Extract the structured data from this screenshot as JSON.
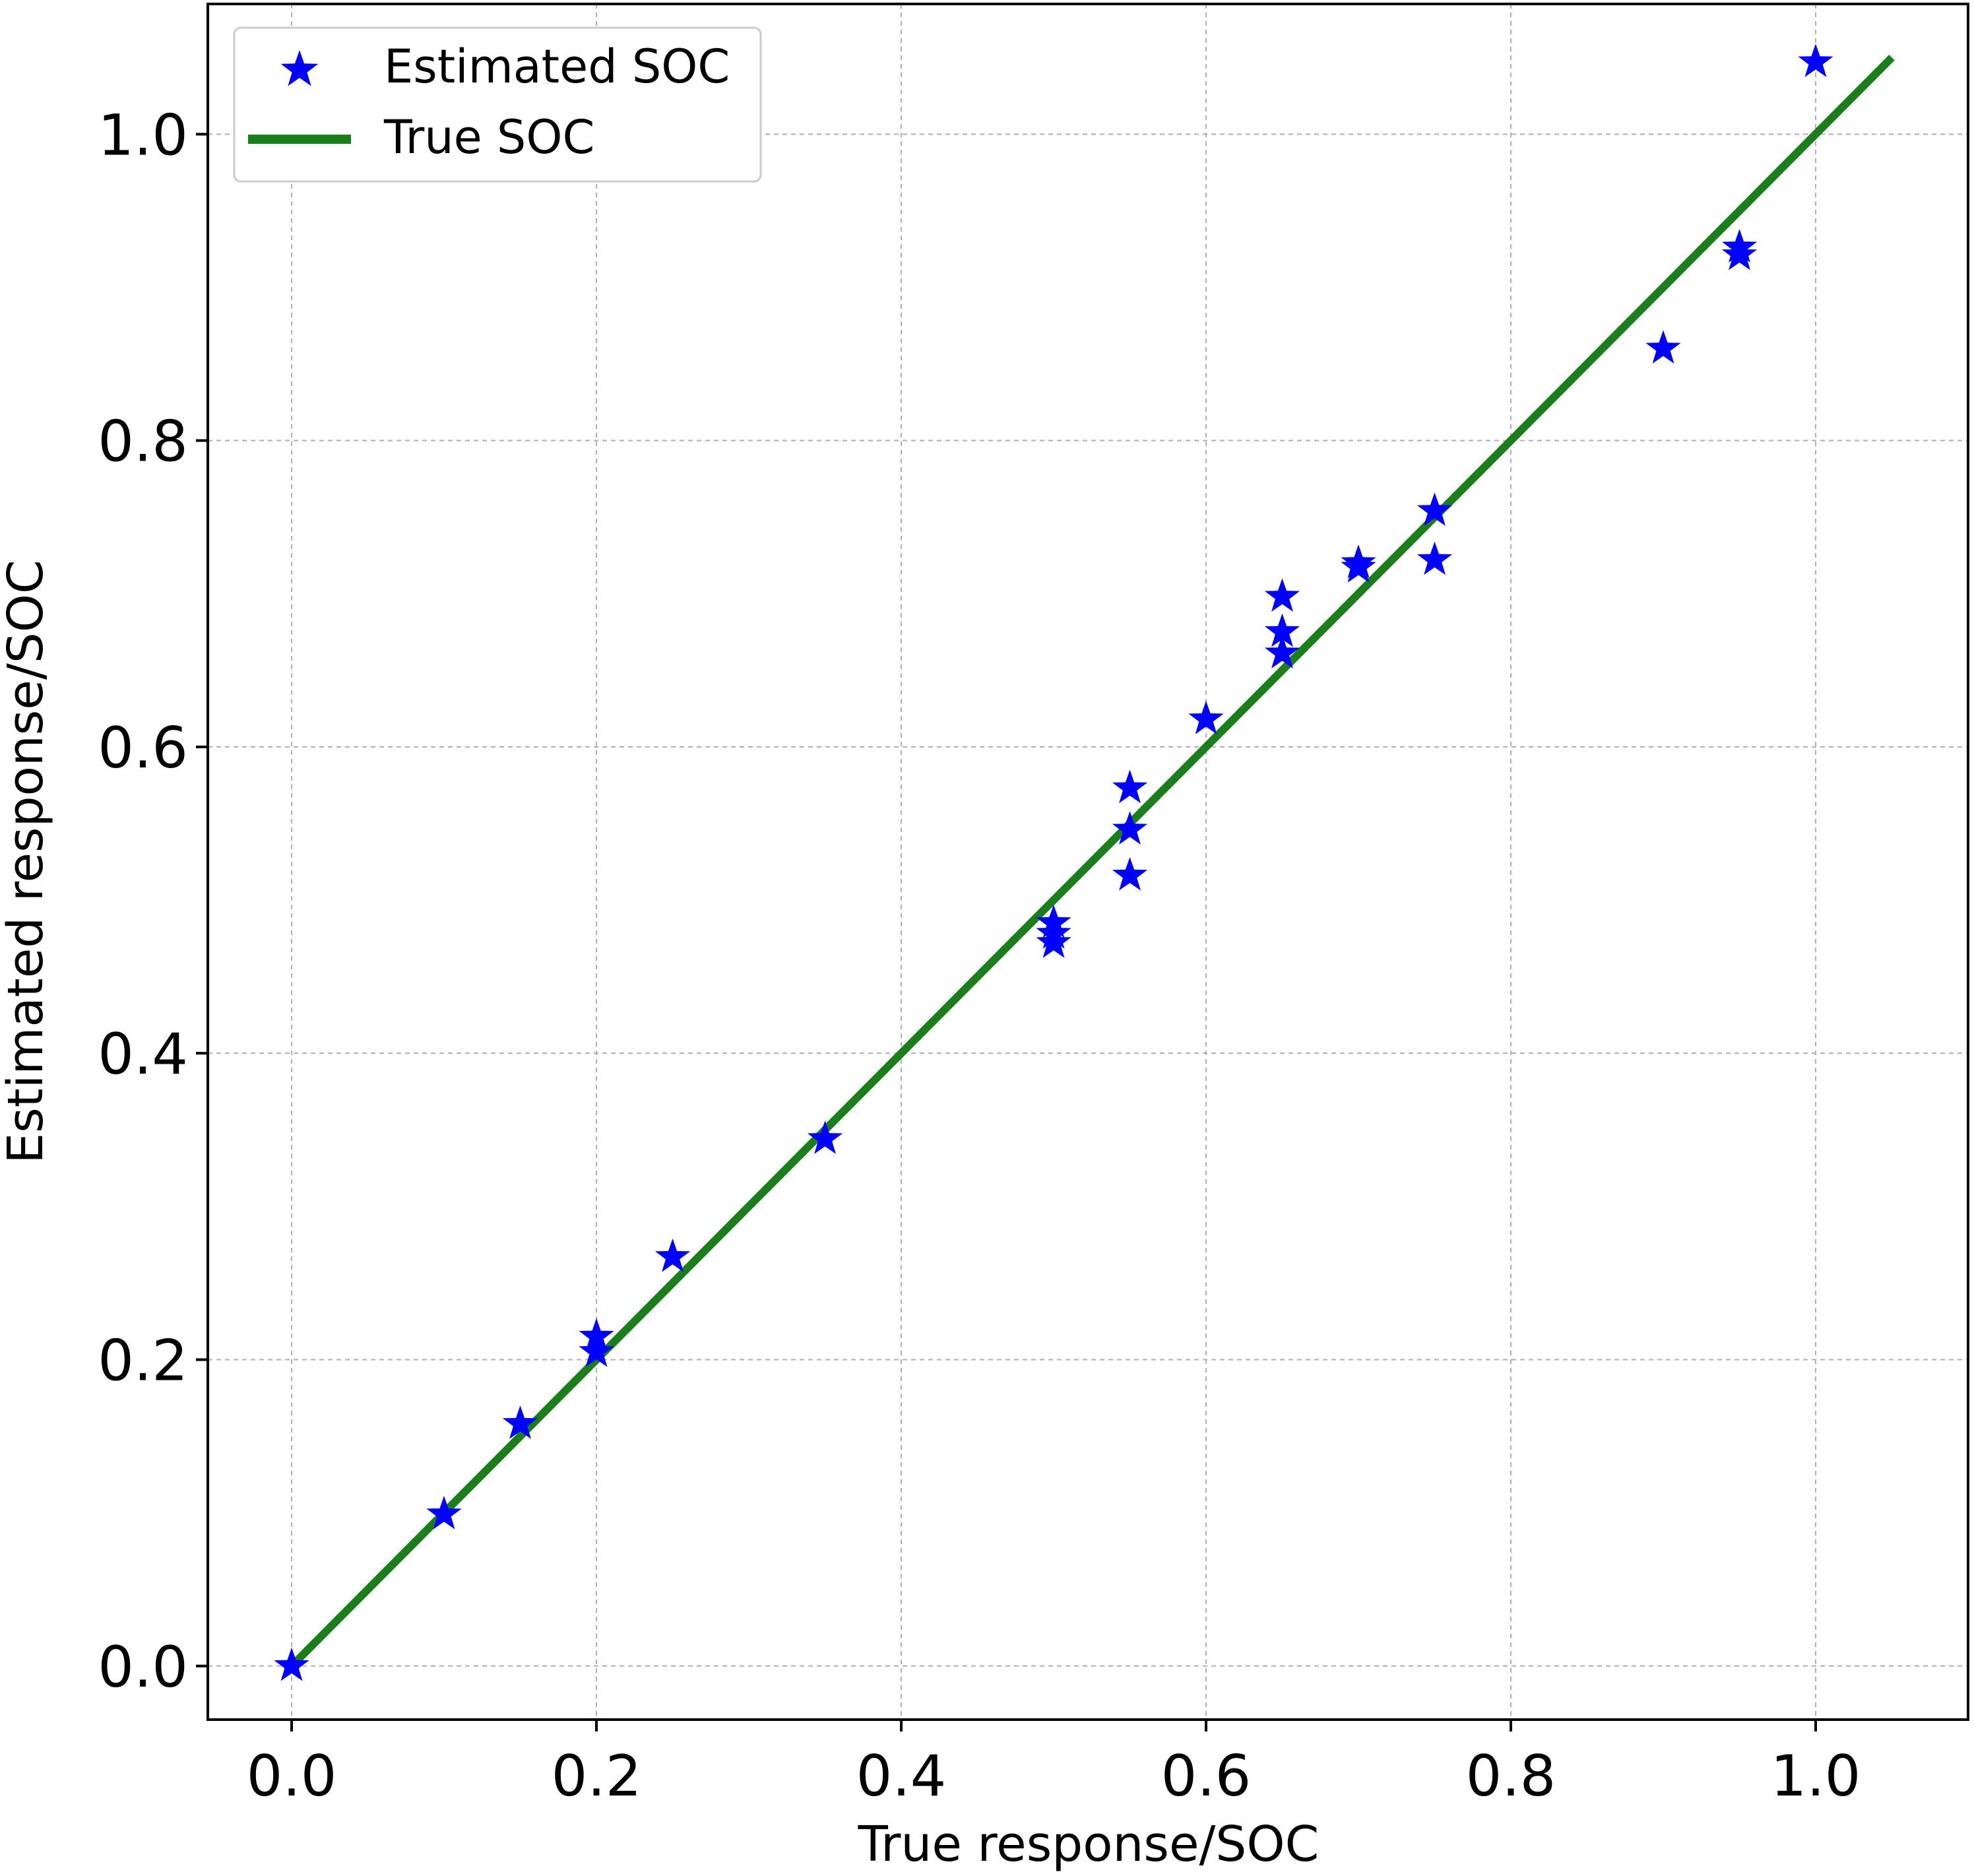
{
  "chart_data": {
    "type": "scatter",
    "xlabel": "True response/SOC",
    "ylabel": "Estimated response/SOC",
    "xlim": [
      -0.055,
      1.1
    ],
    "ylim": [
      -0.035,
      1.085
    ],
    "xticks": [
      "0.0",
      "0.2",
      "0.4",
      "0.6",
      "0.8",
      "1.0"
    ],
    "yticks": [
      "0.0",
      "0.2",
      "0.4",
      "0.6",
      "0.8",
      "1.0"
    ],
    "grid": true,
    "legend_position": "upper left",
    "series": [
      {
        "name": "Estimated SOC",
        "kind": "scatter",
        "marker": "star",
        "color": "#0000ff",
        "points": [
          {
            "x": 0.0,
            "y": 0.0
          },
          {
            "x": 0.1,
            "y": 0.099
          },
          {
            "x": 0.15,
            "y": 0.158
          },
          {
            "x": 0.2,
            "y": 0.205
          },
          {
            "x": 0.2,
            "y": 0.215
          },
          {
            "x": 0.25,
            "y": 0.267
          },
          {
            "x": 0.35,
            "y": 0.344
          },
          {
            "x": 0.5,
            "y": 0.472
          },
          {
            "x": 0.5,
            "y": 0.478
          },
          {
            "x": 0.5,
            "y": 0.485
          },
          {
            "x": 0.55,
            "y": 0.516
          },
          {
            "x": 0.55,
            "y": 0.546
          },
          {
            "x": 0.55,
            "y": 0.573
          },
          {
            "x": 0.6,
            "y": 0.618
          },
          {
            "x": 0.65,
            "y": 0.661
          },
          {
            "x": 0.65,
            "y": 0.675
          },
          {
            "x": 0.65,
            "y": 0.698
          },
          {
            "x": 0.7,
            "y": 0.717
          },
          {
            "x": 0.7,
            "y": 0.72
          },
          {
            "x": 0.75,
            "y": 0.722
          },
          {
            "x": 0.75,
            "y": 0.754
          },
          {
            "x": 0.9,
            "y": 0.86
          },
          {
            "x": 0.95,
            "y": 0.921
          },
          {
            "x": 0.95,
            "y": 0.926
          },
          {
            "x": 1.0,
            "y": 1.047
          }
        ]
      },
      {
        "name": "True SOC",
        "kind": "line",
        "color": "#1a7f1a",
        "points": [
          {
            "x": 0.0,
            "y": 0.0
          },
          {
            "x": 1.05,
            "y": 1.05
          }
        ]
      }
    ]
  }
}
